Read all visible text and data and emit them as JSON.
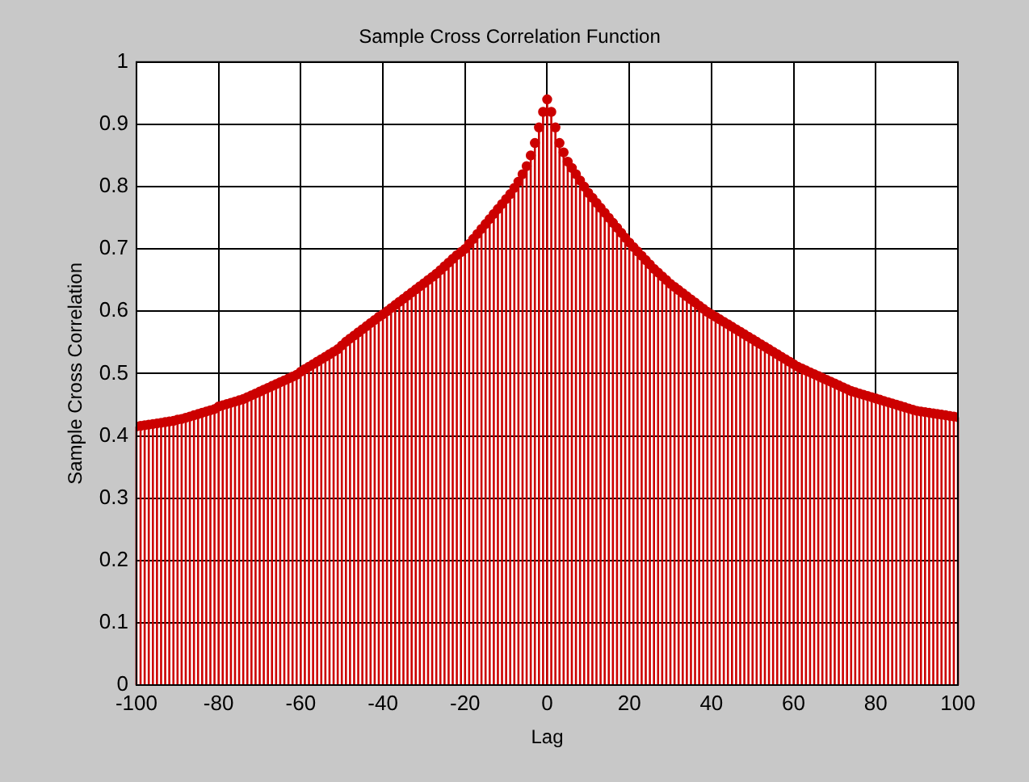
{
  "chart_data": {
    "type": "lollipop",
    "title": "Sample Cross Correlation Function",
    "xlabel": "Lag",
    "ylabel": "Sample Cross Correlation",
    "x": [
      -100,
      -99,
      -98,
      -97,
      -96,
      -95,
      -94,
      -93,
      -92,
      -91,
      -90,
      -89,
      -88,
      -87,
      -86,
      -85,
      -84,
      -83,
      -82,
      -81,
      -80,
      -79,
      -78,
      -77,
      -76,
      -75,
      -74,
      -73,
      -72,
      -71,
      -70,
      -69,
      -68,
      -67,
      -66,
      -65,
      -64,
      -63,
      -62,
      -61,
      -60,
      -59,
      -58,
      -57,
      -56,
      -55,
      -54,
      -53,
      -52,
      -51,
      -50,
      -49,
      -48,
      -47,
      -46,
      -45,
      -44,
      -43,
      -42,
      -41,
      -40,
      -39,
      -38,
      -37,
      -36,
      -35,
      -34,
      -33,
      -32,
      -31,
      -30,
      -29,
      -28,
      -27,
      -26,
      -25,
      -24,
      -23,
      -22,
      -21,
      -20,
      -19,
      -18,
      -17,
      -16,
      -15,
      -14,
      -13,
      -12,
      -11,
      -10,
      -9,
      -8,
      -7,
      -6,
      -5,
      -4,
      -3,
      -2,
      -1,
      0,
      1,
      2,
      3,
      4,
      5,
      6,
      7,
      8,
      9,
      10,
      11,
      12,
      13,
      14,
      15,
      16,
      17,
      18,
      19,
      20,
      21,
      22,
      23,
      24,
      25,
      26,
      27,
      28,
      29,
      30,
      31,
      32,
      33,
      34,
      35,
      36,
      37,
      38,
      39,
      40,
      41,
      42,
      43,
      44,
      45,
      46,
      47,
      48,
      49,
      50,
      51,
      52,
      53,
      54,
      55,
      56,
      57,
      58,
      59,
      60,
      61,
      62,
      63,
      64,
      65,
      66,
      67,
      68,
      69,
      70,
      71,
      72,
      73,
      74,
      75,
      76,
      77,
      78,
      79,
      80,
      81,
      82,
      83,
      84,
      85,
      86,
      87,
      88,
      89,
      90,
      91,
      92,
      93,
      94,
      95,
      96,
      97,
      98,
      99,
      100
    ],
    "series": [
      {
        "color": "#cc0000",
        "values": [
          0.415,
          0.416,
          0.417,
          0.418,
          0.419,
          0.42,
          0.421,
          0.422,
          0.423,
          0.424,
          0.426,
          0.427,
          0.429,
          0.431,
          0.433,
          0.435,
          0.437,
          0.439,
          0.441,
          0.443,
          0.447,
          0.449,
          0.451,
          0.453,
          0.455,
          0.457,
          0.459,
          0.462,
          0.465,
          0.468,
          0.471,
          0.474,
          0.477,
          0.48,
          0.483,
          0.486,
          0.489,
          0.492,
          0.495,
          0.498,
          0.503,
          0.507,
          0.511,
          0.515,
          0.519,
          0.523,
          0.527,
          0.531,
          0.535,
          0.539,
          0.545,
          0.551,
          0.556,
          0.561,
          0.566,
          0.571,
          0.576,
          0.581,
          0.586,
          0.591,
          0.595,
          0.6,
          0.605,
          0.61,
          0.615,
          0.62,
          0.625,
          0.63,
          0.635,
          0.64,
          0.645,
          0.65,
          0.655,
          0.66,
          0.666,
          0.672,
          0.678,
          0.684,
          0.69,
          0.695,
          0.7,
          0.708,
          0.716,
          0.724,
          0.732,
          0.74,
          0.748,
          0.756,
          0.764,
          0.772,
          0.78,
          0.788,
          0.798,
          0.808,
          0.82,
          0.833,
          0.85,
          0.87,
          0.895,
          0.92,
          0.94,
          0.92,
          0.895,
          0.87,
          0.855,
          0.84,
          0.83,
          0.82,
          0.81,
          0.8,
          0.79,
          0.782,
          0.774,
          0.766,
          0.758,
          0.75,
          0.742,
          0.734,
          0.726,
          0.718,
          0.71,
          0.703,
          0.696,
          0.689,
          0.682,
          0.675,
          0.668,
          0.662,
          0.656,
          0.65,
          0.644,
          0.639,
          0.634,
          0.629,
          0.624,
          0.619,
          0.614,
          0.609,
          0.604,
          0.599,
          0.595,
          0.591,
          0.587,
          0.583,
          0.579,
          0.575,
          0.571,
          0.567,
          0.563,
          0.559,
          0.555,
          0.551,
          0.547,
          0.543,
          0.539,
          0.535,
          0.531,
          0.527,
          0.523,
          0.519,
          0.515,
          0.511,
          0.508,
          0.505,
          0.502,
          0.499,
          0.496,
          0.493,
          0.49,
          0.487,
          0.484,
          0.481,
          0.478,
          0.475,
          0.472,
          0.47,
          0.468,
          0.466,
          0.464,
          0.462,
          0.46,
          0.458,
          0.456,
          0.454,
          0.452,
          0.45,
          0.448,
          0.446,
          0.444,
          0.442,
          0.44,
          0.439,
          0.438,
          0.437,
          0.436,
          0.435,
          0.434,
          0.433,
          0.432,
          0.431,
          0.43
        ]
      }
    ],
    "xlim": [
      -100,
      100
    ],
    "xticks": [
      -100,
      -80,
      -60,
      -40,
      -20,
      0,
      20,
      40,
      60,
      80,
      100
    ],
    "ylim": [
      0,
      1
    ],
    "yticks": [
      0,
      0.1,
      0.2,
      0.3,
      0.4,
      0.5,
      0.6,
      0.7,
      0.8,
      0.9,
      1
    ],
    "grid": true,
    "marker": "circle",
    "legend": false
  }
}
